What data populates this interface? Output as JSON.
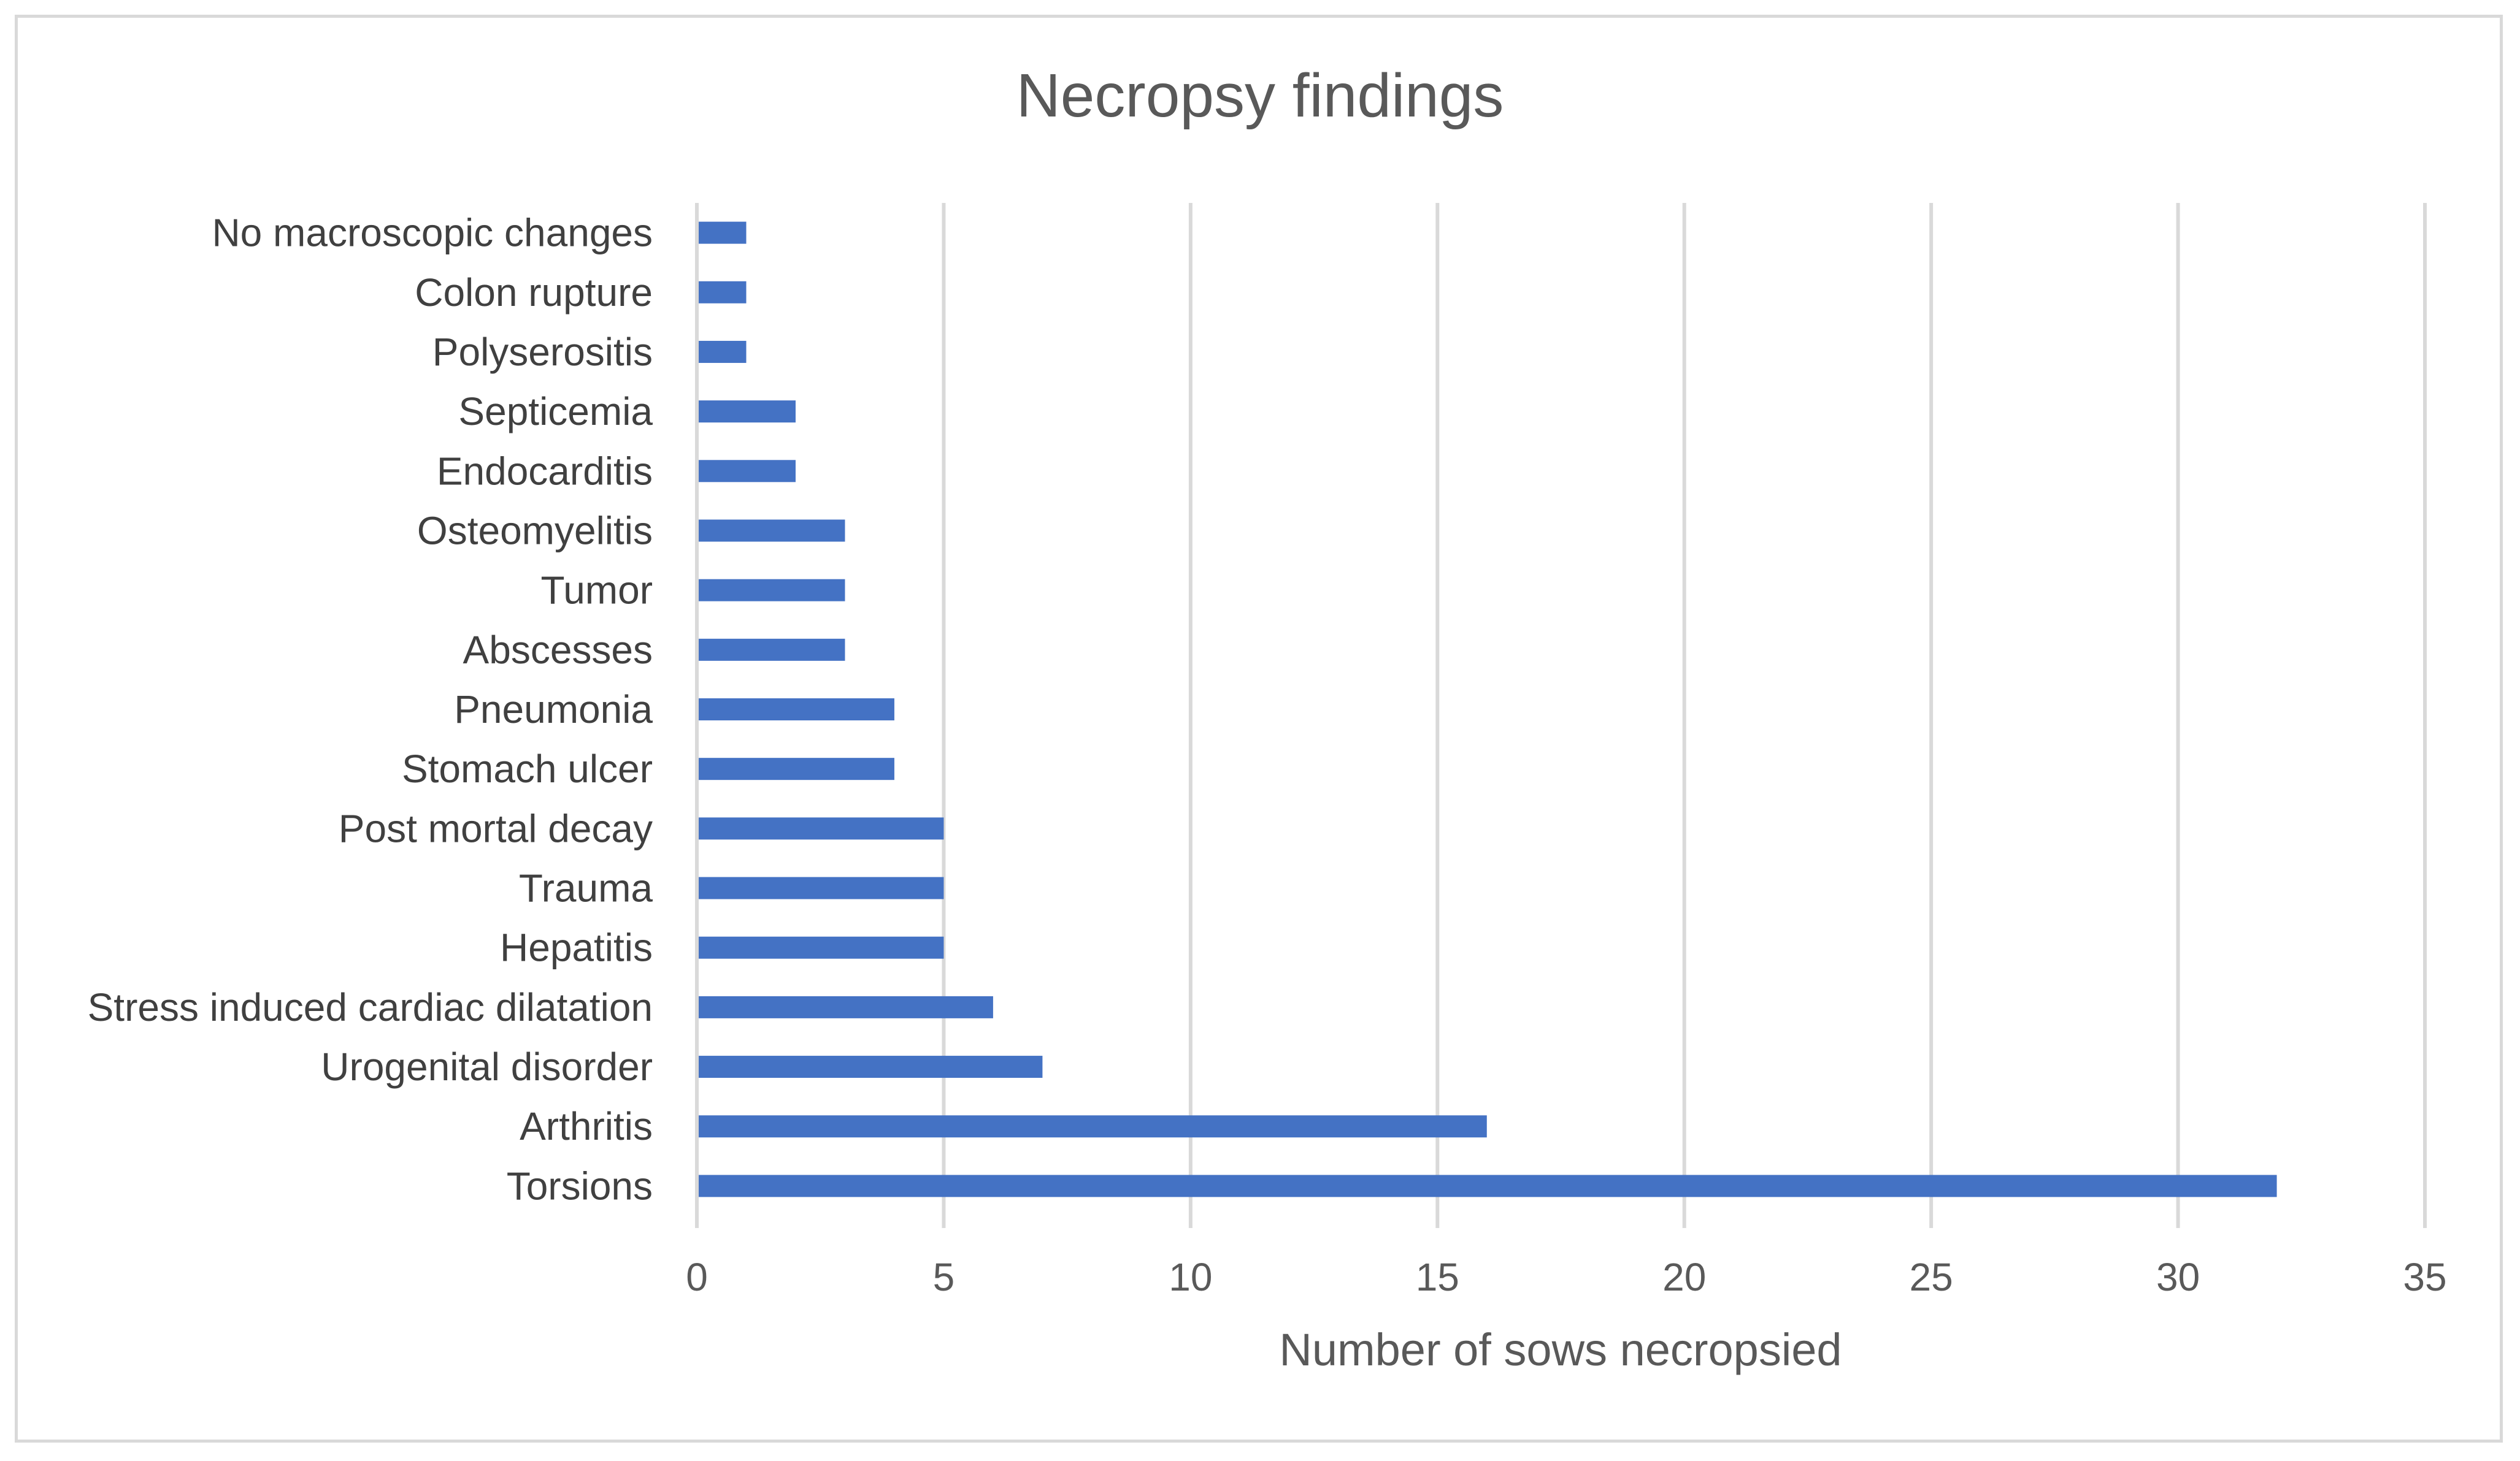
{
  "chart_data": {
    "type": "bar",
    "orientation": "horizontal",
    "title": "Necropsy findings",
    "xlabel": "Number of sows necropsied",
    "ylabel": "",
    "xlim": [
      0,
      35
    ],
    "xticks": [
      0,
      5,
      10,
      15,
      20,
      25,
      30,
      35
    ],
    "grid": true,
    "legend": "none",
    "bar_color": "#4472c4",
    "categories": [
      "No macroscopic changes",
      "Colon rupture",
      "Polyserositis",
      "Septicemia",
      "Endocarditis",
      "Osteomyelitis",
      "Tumor",
      "Abscesses",
      "Pneumonia",
      "Stomach ulcer",
      "Post mortal decay",
      "Trauma",
      "Hepatitis",
      "Stress induced cardiac dilatation",
      "Urogenital disorder",
      "Arthritis",
      "Torsions"
    ],
    "values": [
      1,
      1,
      1,
      2,
      2,
      3,
      3,
      3,
      4,
      4,
      5,
      5,
      5,
      6,
      7,
      16,
      32
    ]
  }
}
